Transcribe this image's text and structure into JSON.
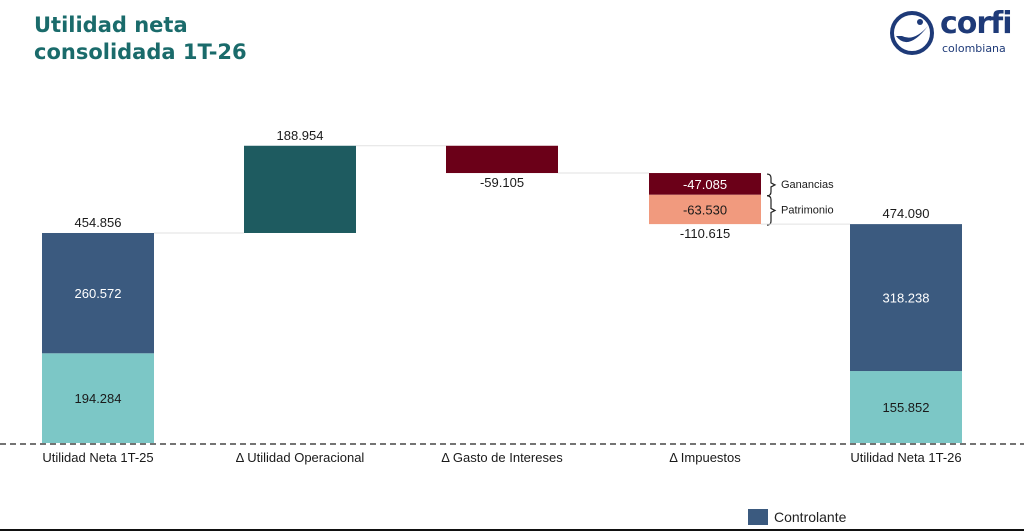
{
  "title_lines": [
    "Utilidad neta",
    "consolidada 1T-26"
  ],
  "logo": {
    "word": "corfi",
    "sub": "colombiana"
  },
  "chart_data": {
    "type": "waterfall",
    "categories": [
      "Utilidad Neta 1T-25",
      "Δ Utilidad Operacional",
      "Δ Gasto de Intereses",
      "Δ Impuestos",
      "Utilidad Neta 1T-26"
    ],
    "steps": [
      {
        "kind": "total",
        "total": 454.856,
        "total_label": "454.856",
        "segments": [
          {
            "name": "Controlante",
            "value": 260.572,
            "label": "260.572",
            "color": "#3b5a7f"
          },
          {
            "name": "",
            "value": 194.284,
            "label": "194.284",
            "color": "#7cc7c6"
          }
        ]
      },
      {
        "kind": "delta",
        "value": 188.954,
        "label": "188.954",
        "color": "#1e5b60"
      },
      {
        "kind": "delta",
        "value": -59.105,
        "label": "-59.105",
        "color": "#6b0018"
      },
      {
        "kind": "delta",
        "value": -110.615,
        "label": "-110.615",
        "segments": [
          {
            "name": "Ganancias",
            "value": -47.085,
            "label": "-47.085",
            "color": "#6b0018"
          },
          {
            "name": "Patrimonio",
            "value": -63.53,
            "label": "-63.530",
            "color": "#f19a7e"
          }
        ]
      },
      {
        "kind": "total",
        "total": 474.09,
        "total_label": "474.090",
        "segments": [
          {
            "name": "Controlante",
            "value": 318.238,
            "label": "318.238",
            "color": "#3b5a7f"
          },
          {
            "name": "",
            "value": 155.852,
            "label": "155.852",
            "color": "#7cc7c6"
          }
        ]
      }
    ],
    "legend": [
      {
        "name": "Controlante",
        "color": "#3b5a7f"
      }
    ],
    "legend_position": "bottom-right",
    "grid": false,
    "baseline": "dashed"
  }
}
